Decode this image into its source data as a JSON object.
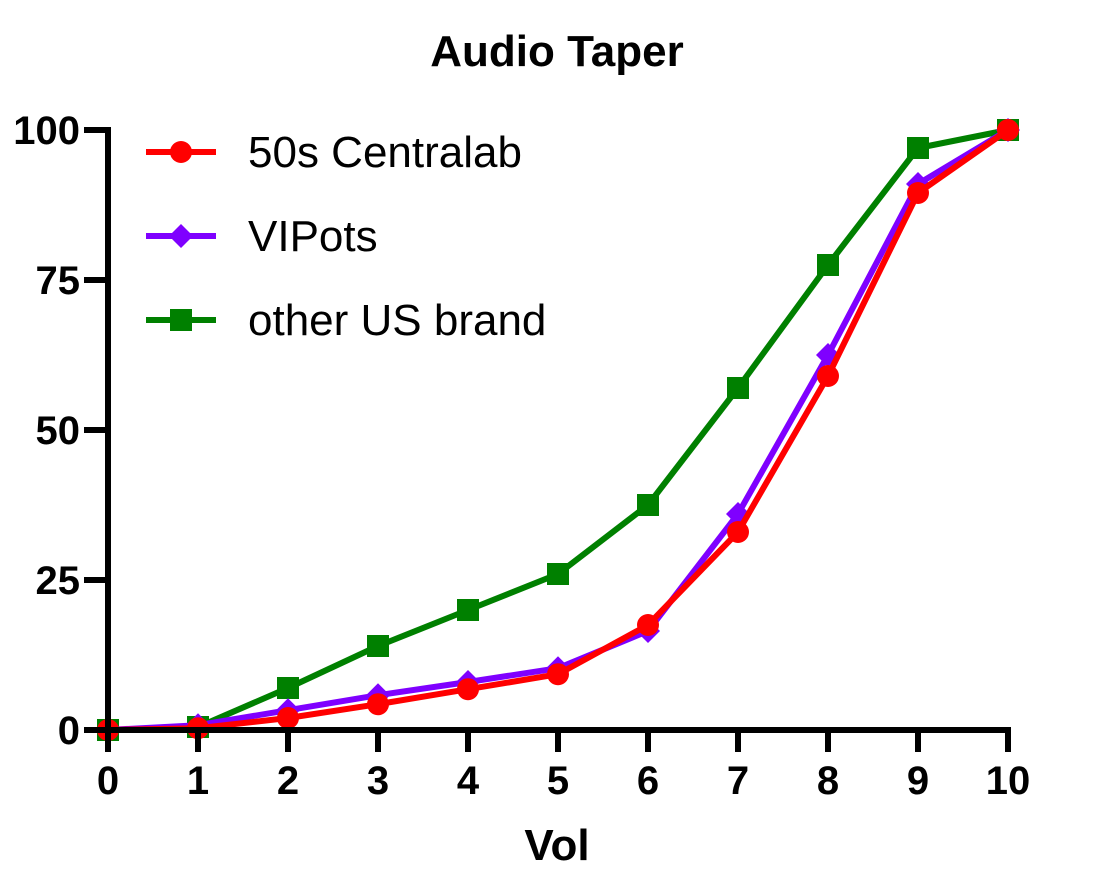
{
  "chart_data": {
    "type": "line",
    "title": "Audio Taper",
    "xlabel": "Vol",
    "ylabel": "",
    "x": [
      0,
      1,
      2,
      3,
      4,
      5,
      6,
      7,
      8,
      9,
      10
    ],
    "xlim": [
      0,
      10
    ],
    "ylim": [
      0,
      100
    ],
    "xticks": [
      "0",
      "1",
      "2",
      "3",
      "4",
      "5",
      "6",
      "7",
      "8",
      "9",
      "10"
    ],
    "yticks": [
      0,
      25,
      50,
      75,
      100
    ],
    "grid": false,
    "legend_position": "top-left",
    "series": [
      {
        "name": "50s Centralab",
        "color": "#ff0000",
        "marker": "circle",
        "values": [
          0,
          0.3,
          2,
          4.3,
          6.8,
          9.3,
          17.5,
          33,
          59,
          89.5,
          100
        ]
      },
      {
        "name": "VIPots",
        "color": "#7f00ff",
        "marker": "diamond",
        "values": [
          0,
          0.8,
          3.3,
          5.8,
          8,
          10.3,
          16.5,
          36,
          62.5,
          91,
          100
        ]
      },
      {
        "name": "other US brand",
        "color": "#008000",
        "marker": "square",
        "values": [
          0,
          0.5,
          7,
          14,
          20,
          26,
          37.5,
          57,
          77.5,
          97,
          100
        ]
      }
    ]
  }
}
